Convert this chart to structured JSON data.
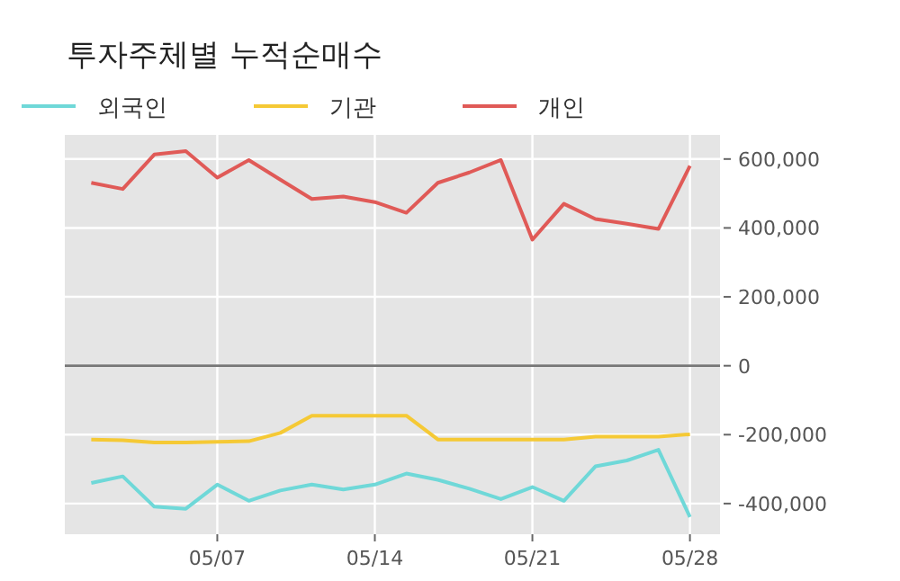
{
  "chart_data": {
    "type": "line",
    "title": "투자주체별 누적순매수",
    "categories": [
      null,
      null,
      null,
      null,
      "05/07",
      null,
      null,
      null,
      null,
      "05/14",
      null,
      null,
      null,
      null,
      "05/21",
      null,
      null,
      null,
      null,
      "05/28"
    ],
    "series": [
      {
        "name": "외국인",
        "color": "#6fd8d8",
        "values": [
          -340000,
          -321000,
          -409000,
          -415000,
          -345000,
          -392000,
          -362000,
          -345000,
          -359000,
          -345000,
          -313000,
          -331000,
          -357000,
          -387000,
          -352000,
          -392000,
          -292000,
          -275000,
          -244000,
          -439000
        ]
      },
      {
        "name": "기관",
        "color": "#f5c935",
        "values": [
          -214000,
          -216000,
          -223000,
          -223000,
          -221000,
          -219000,
          -195000,
          -145000,
          -145000,
          -145000,
          -145000,
          -214000,
          -214000,
          -214000,
          -214000,
          -214000,
          -206000,
          -206000,
          -206000,
          -199000
        ]
      },
      {
        "name": "개인",
        "color": "#e05a57",
        "values": [
          531000,
          513000,
          613000,
          623000,
          546000,
          597000,
          540000,
          484000,
          491000,
          475000,
          444000,
          531000,
          561000,
          597000,
          366000,
          470000,
          426000,
          412000,
          397000,
          580000
        ]
      }
    ],
    "ylim": [
      -489000,
      670000
    ],
    "yticks": [
      {
        "value": -400000,
        "label": "-400,000"
      },
      {
        "value": -200000,
        "label": "-200,000"
      },
      0,
      {
        "value": 200000,
        "label": "200,000"
      },
      {
        "value": 400000,
        "label": "400,000"
      },
      {
        "value": 600000,
        "label": "600,000"
      }
    ],
    "ref_lines": [
      {
        "axis": "y",
        "value": 0,
        "color": "#777777"
      }
    ],
    "grid": true,
    "legend": "top left",
    "line_style": "solid",
    "marker": "none"
  }
}
